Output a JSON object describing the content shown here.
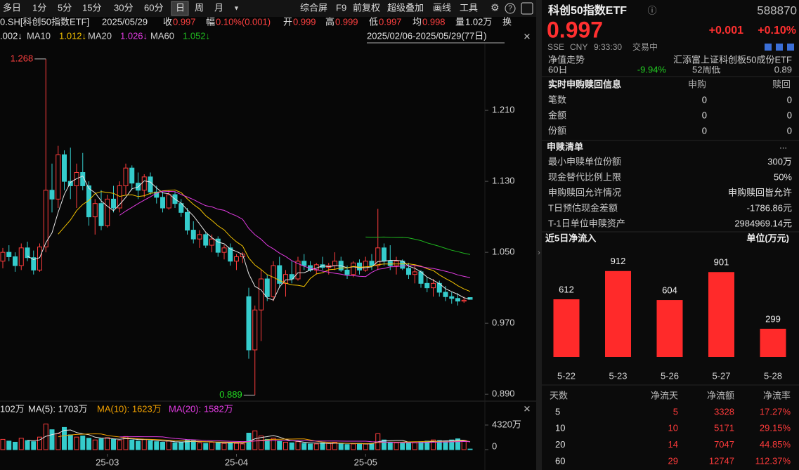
{
  "toolbar": {
    "periods": [
      "多日",
      "1分",
      "5分",
      "15分",
      "30分",
      "60分",
      "日",
      "周",
      "月"
    ],
    "active_period": "日",
    "tools": [
      "综合屏",
      "F9",
      "前复权",
      "超级叠加",
      "画线",
      "工具"
    ]
  },
  "info_bar": {
    "code": "0.SH[科创50指数ETF]",
    "date": "2025/05/29",
    "items": [
      {
        "label": "收",
        "value": "0.997",
        "color": "#ff4040"
      },
      {
        "label": "幅",
        "value": "0.10%(0.001)",
        "color": "#ff4040"
      },
      {
        "label": "开",
        "value": "0.999",
        "color": "#ff4040"
      },
      {
        "label": "高",
        "value": "0.999",
        "color": "#ff4040"
      },
      {
        "label": "低",
        "value": "0.997",
        "color": "#ff4040"
      },
      {
        "label": "均",
        "value": "0.998",
        "color": "#ff4040"
      },
      {
        "label": "量",
        "value": "1.02万",
        "color": "#e8e8e8"
      },
      {
        "label": "换"
      }
    ]
  },
  "chart_data": [
    {
      "type": "candlestick",
      "up_color": "#ff3d3d",
      "down_color": "#35cccc",
      "ylim": [
        0.883,
        1.279
      ],
      "yticks": [
        {
          "value": 1.21,
          "label": "1.210"
        },
        {
          "value": 1.13,
          "label": "1.130"
        },
        {
          "value": 1.05,
          "label": "1.050"
        },
        {
          "value": 0.97,
          "label": "0.970"
        },
        {
          "value": 0.89,
          "label": "0.890"
        }
      ],
      "legend": [
        {
          "value": ".002↓"
        },
        {
          "name": "MA10",
          "value": "1.012↓"
        },
        {
          "name": "MA20",
          "value": "1.026↓"
        },
        {
          "name": "MA60",
          "value": "1.052↓"
        }
      ],
      "ma_periods": [
        5,
        10,
        20,
        60
      ],
      "ma_colors": [
        "#e6e6e6",
        "#f2c200",
        "#e23be2",
        "#1fb81f"
      ],
      "range_label": "2025/02/06-2025/05/29(77日)",
      "annotations": [
        {
          "kind": "high",
          "text": "1.268",
          "value": 1.268,
          "color": "#ff4040"
        },
        {
          "kind": "low",
          "text": "0.889",
          "value": 0.889,
          "color": "#22dd22"
        }
      ],
      "candles": [
        [
          1.04,
          1.055,
          1.032,
          1.05
        ],
        [
          1.05,
          1.058,
          1.04,
          1.045
        ],
        [
          1.045,
          1.05,
          1.028,
          1.035
        ],
        [
          1.035,
          1.06,
          1.03,
          1.055
        ],
        [
          1.055,
          1.062,
          1.04,
          1.044
        ],
        [
          1.044,
          1.052,
          1.025,
          1.03
        ],
        [
          1.03,
          1.06,
          1.028,
          1.056
        ],
        [
          1.056,
          1.268,
          1.05,
          1.12
        ],
        [
          1.12,
          1.15,
          1.095,
          1.11
        ],
        [
          1.11,
          1.17,
          1.1,
          1.16
        ],
        [
          1.16,
          1.165,
          1.12,
          1.13
        ],
        [
          1.13,
          1.168,
          1.11,
          1.125
        ],
        [
          1.125,
          1.15,
          1.1,
          1.14
        ],
        [
          1.14,
          1.162,
          1.12,
          1.125
        ],
        [
          1.125,
          1.13,
          1.08,
          1.09
        ],
        [
          1.09,
          1.11,
          1.07,
          1.105
        ],
        [
          1.105,
          1.12,
          1.075,
          1.08
        ],
        [
          1.08,
          1.115,
          1.078,
          1.11
        ],
        [
          1.11,
          1.125,
          1.095,
          1.1
        ],
        [
          1.1,
          1.13,
          1.095,
          1.125
        ],
        [
          1.125,
          1.15,
          1.115,
          1.145
        ],
        [
          1.145,
          1.148,
          1.12,
          1.128
        ],
        [
          1.128,
          1.14,
          1.11,
          1.12
        ],
        [
          1.12,
          1.138,
          1.112,
          1.135
        ],
        [
          1.135,
          1.14,
          1.115,
          1.118
        ],
        [
          1.118,
          1.125,
          1.105,
          1.112
        ],
        [
          1.112,
          1.118,
          1.095,
          1.1
        ],
        [
          1.1,
          1.12,
          1.098,
          1.115
        ],
        [
          1.115,
          1.118,
          1.1,
          1.105
        ],
        [
          1.105,
          1.11,
          1.09,
          1.095
        ],
        [
          1.095,
          1.1,
          1.07,
          1.075
        ],
        [
          1.075,
          1.085,
          1.06,
          1.065
        ],
        [
          1.065,
          1.075,
          1.055,
          1.07
        ],
        [
          1.07,
          1.072,
          1.055,
          1.058
        ],
        [
          1.058,
          1.07,
          1.05,
          1.065
        ],
        [
          1.065,
          1.068,
          1.045,
          1.05
        ],
        [
          1.05,
          1.058,
          1.042,
          1.055
        ],
        [
          1.055,
          1.06,
          1.035,
          1.04
        ],
        [
          1.04,
          1.048,
          1.03,
          1.045
        ],
        [
          1.045,
          1.05,
          1.038,
          1.048
        ],
        [
          1.0,
          1.01,
          0.93,
          0.94
        ],
        [
          0.94,
          0.99,
          0.889,
          0.985
        ],
        [
          0.985,
          1.03,
          0.95,
          1.02
        ],
        [
          1.02,
          1.025,
          0.995,
          1.0
        ],
        [
          1.0,
          1.04,
          0.995,
          1.035
        ],
        [
          1.035,
          1.045,
          1.01,
          1.015
        ],
        [
          1.015,
          1.03,
          1.0,
          1.025
        ],
        [
          1.025,
          1.04,
          1.015,
          1.02
        ],
        [
          1.02,
          1.045,
          1.018,
          1.04
        ],
        [
          1.04,
          1.048,
          1.03,
          1.035
        ],
        [
          1.035,
          1.04,
          1.028,
          1.03
        ],
        [
          1.03,
          1.038,
          1.025,
          1.036
        ],
        [
          1.036,
          1.045,
          1.03,
          1.033
        ],
        [
          1.033,
          1.038,
          1.025,
          1.035
        ],
        [
          1.035,
          1.05,
          1.03,
          1.04
        ],
        [
          1.04,
          1.045,
          1.028,
          1.03
        ],
        [
          1.03,
          1.035,
          1.02,
          1.025
        ],
        [
          1.025,
          1.04,
          1.022,
          1.038
        ],
        [
          1.038,
          1.042,
          1.025,
          1.03
        ],
        [
          1.03,
          1.045,
          1.028,
          1.04
        ],
        [
          1.04,
          1.048,
          1.03,
          1.035
        ],
        [
          1.035,
          1.099,
          1.03,
          1.055
        ],
        [
          1.055,
          1.06,
          1.035,
          1.04
        ],
        [
          1.04,
          1.058,
          1.03,
          1.035
        ],
        [
          1.035,
          1.045,
          1.025,
          1.04
        ],
        [
          1.04,
          1.042,
          1.03,
          1.032
        ],
        [
          1.032,
          1.038,
          1.02,
          1.025
        ],
        [
          1.025,
          1.035,
          1.015,
          1.028
        ],
        [
          1.028,
          1.03,
          1.01,
          1.015
        ],
        [
          1.015,
          1.022,
          1.005,
          1.01
        ],
        [
          1.01,
          1.02,
          1.0,
          1.015
        ],
        [
          1.015,
          1.018,
          1.0,
          1.005
        ],
        [
          1.005,
          1.012,
          0.995,
          1.0
        ],
        [
          1.0,
          1.005,
          0.992,
          0.998
        ],
        [
          0.998,
          1.004,
          0.99,
          0.995
        ],
        [
          0.995,
          1.0,
          0.993,
          0.996
        ],
        [
          0.999,
          0.999,
          0.997,
          0.997
        ]
      ]
    },
    {
      "type": "volume",
      "ylim": [
        0,
        5184
      ],
      "yticks": [
        {
          "value": 4320,
          "label": "4320万"
        },
        0
      ],
      "legend": [
        {
          "text": "102万",
          "color": "#e6e6e6"
        },
        {
          "text": "MA(5): 1703万",
          "color": "#e6e6e6"
        },
        {
          "text": "MA(10): 1623万",
          "color": "#f0a000"
        },
        {
          "text": "MA(20): 1582万",
          "color": "#e23be2"
        }
      ],
      "ma_periods": [
        5,
        10,
        20
      ],
      "ma_colors": [
        "#e6e6e6",
        "#f0a000",
        "#e23be2"
      ],
      "categories": [
        null,
        null,
        null,
        null,
        null,
        null,
        null,
        null,
        null,
        null,
        null,
        null,
        null,
        null,
        null,
        null,
        null,
        "25-03",
        null,
        null,
        null,
        null,
        null,
        null,
        null,
        null,
        null,
        null,
        null,
        null,
        null,
        null,
        null,
        null,
        null,
        null,
        null,
        null,
        "25-04",
        null,
        null,
        null,
        null,
        null,
        null,
        null,
        null,
        null,
        null,
        null,
        null,
        null,
        null,
        null,
        null,
        null,
        null,
        null,
        null,
        "25-05",
        null,
        null,
        null,
        null,
        null,
        null,
        null,
        null,
        null,
        null,
        null,
        null,
        null,
        null,
        null,
        null,
        null
      ],
      "values": [
        1800,
        1500,
        1300,
        2000,
        1600,
        1400,
        2200,
        4500,
        3500,
        2800,
        3900,
        2600,
        2200,
        2400,
        2000,
        1700,
        1900,
        2100,
        1800,
        1600,
        2300,
        1700,
        1500,
        1800,
        1600,
        1400,
        1300,
        1500,
        1200,
        1300,
        1700,
        1600,
        1200,
        1100,
        1300,
        1200,
        1100,
        1200,
        1100,
        1000,
        2900,
        3300,
        2400,
        1800,
        2000,
        1500,
        1300,
        1200,
        1400,
        1100,
        1000,
        1000,
        1200,
        1100,
        1300,
        1000,
        900,
        1000,
        1100,
        1000,
        1100,
        2800,
        1700,
        1300,
        1200,
        1100,
        1300,
        1200,
        1400,
        1500,
        1700,
        1600,
        1500,
        1700,
        1900,
        1600,
        102
      ]
    },
    {
      "type": "bar",
      "color": "#ff2a2a",
      "ylim": [
        0,
        1000
      ],
      "categories": [
        "5-22",
        "5-23",
        "5-26",
        "5-27",
        "5-28"
      ],
      "values": [
        612,
        912,
        604,
        901,
        299
      ]
    }
  ],
  "quote": {
    "name": "科创50指数ETF",
    "code": "588870",
    "price": "0.997",
    "change": "+0.001",
    "change_pct": "+0.10%",
    "meta": [
      "SSE",
      "CNY",
      "9:33:30",
      "交易中"
    ]
  },
  "nav_row": {
    "label": "净值走势",
    "value": "汇添富上证科创板50成份ETF"
  },
  "hidden_row": [
    "60日",
    "-9.94%",
    "52周低",
    "0.89"
  ],
  "realtime": {
    "title": "实时申购赎回信息",
    "columns": [
      "申购",
      "赎回"
    ],
    "rows": [
      [
        "笔数",
        "0",
        "0"
      ],
      [
        "金额",
        "0",
        "0"
      ],
      [
        "份额",
        "0",
        "0"
      ]
    ]
  },
  "redemption_list": {
    "title": "申赎清单",
    "more": "...",
    "rows": [
      [
        "最小申赎单位份额",
        "300万"
      ],
      [
        "现金替代比例上限",
        "50%"
      ],
      [
        "申购赎回允许情况",
        "申购赎回皆允许"
      ],
      [
        "T日预估现金差额",
        "-1786.86元"
      ],
      [
        "T-1日单位申赎资产",
        "2984969.14元"
      ]
    ]
  },
  "net_flow": {
    "title": "近5日净流入",
    "unit": "单位(万元)",
    "table": {
      "columns": [
        "天数",
        "净流天",
        "净流额",
        "净流率"
      ],
      "rows": [
        [
          "5",
          "5",
          "3328",
          "17.27%"
        ],
        [
          "10",
          "10",
          "5171",
          "29.15%"
        ],
        [
          "20",
          "14",
          "7047",
          "44.85%"
        ],
        [
          "60",
          "29",
          "12747",
          "112.37%"
        ]
      ]
    }
  }
}
